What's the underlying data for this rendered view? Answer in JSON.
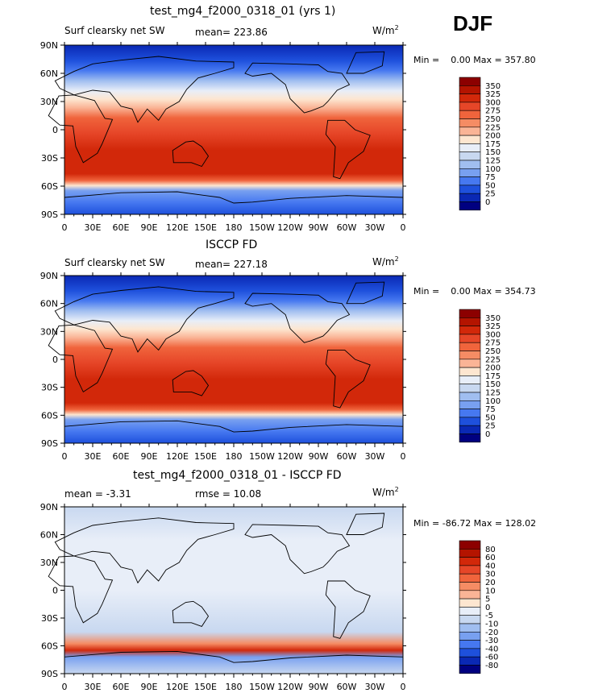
{
  "season": "DJF",
  "chart_data": [
    {
      "type": "heatmap",
      "title": "test_mg4_f2000_0318_01 (yrs 1)",
      "left_label": "Surf clearsky net SW",
      "center_label": "mean= 223.86",
      "units": "W/m",
      "units_exp": "2",
      "min_max": "Min =    0.00 Max = 357.80",
      "xticks": [
        "0",
        "30E",
        "60E",
        "90E",
        "120E",
        "150E",
        "180",
        "150W",
        "120W",
        "90W",
        "60W",
        "30W",
        "0"
      ],
      "yticks": [
        "90N",
        "60N",
        "30N",
        "0",
        "30S",
        "60S",
        "90S"
      ],
      "levels": [
        350,
        325,
        300,
        275,
        250,
        225,
        200,
        175,
        150,
        125,
        100,
        75,
        50,
        25,
        0
      ],
      "colors": [
        "#8c0000",
        "#b41400",
        "#d2280a",
        "#e64628",
        "#f0643c",
        "#f58c64",
        "#fab496",
        "#fde6d0",
        "#e8eef8",
        "#c8d8f0",
        "#a0bef0",
        "#78a0f0",
        "#4678f0",
        "#1e50dc",
        "#0a28b4",
        "#000080"
      ]
    },
    {
      "type": "heatmap",
      "title": "ISCCP FD",
      "left_label": "Surf clearsky net SW",
      "center_label": "mean= 227.18",
      "units": "W/m",
      "units_exp": "2",
      "min_max": "Min =    0.00 Max = 354.73",
      "xticks": [
        "0",
        "30E",
        "60E",
        "90E",
        "120E",
        "150E",
        "180",
        "150W",
        "120W",
        "90W",
        "60W",
        "30W",
        "0"
      ],
      "yticks": [
        "90N",
        "60N",
        "30N",
        "0",
        "30S",
        "60S",
        "90S"
      ],
      "levels": [
        350,
        325,
        300,
        275,
        250,
        225,
        200,
        175,
        150,
        125,
        100,
        75,
        50,
        25,
        0
      ],
      "colors": [
        "#8c0000",
        "#b41400",
        "#d2280a",
        "#e64628",
        "#f0643c",
        "#f58c64",
        "#fab496",
        "#fde6d0",
        "#e8eef8",
        "#c8d8f0",
        "#a0bef0",
        "#78a0f0",
        "#4678f0",
        "#1e50dc",
        "#0a28b4",
        "#000080"
      ]
    },
    {
      "type": "heatmap",
      "title": "test_mg4_f2000_0318_01 - ISCCP FD",
      "left_label": "mean =   -3.31",
      "center_label": "rmse =   10.08",
      "units": "W/m",
      "units_exp": "2",
      "min_max": "Min = -86.72 Max = 128.02",
      "xticks": [
        "0",
        "30E",
        "60E",
        "90E",
        "120E",
        "150E",
        "180",
        "150W",
        "120W",
        "90W",
        "60W",
        "30W",
        "0"
      ],
      "yticks": [
        "90N",
        "60N",
        "30N",
        "0",
        "30S",
        "60S",
        "90S"
      ],
      "levels": [
        80,
        60,
        40,
        30,
        20,
        10,
        5,
        0,
        -5,
        -10,
        -20,
        -30,
        -40,
        -60,
        -80
      ],
      "colors": [
        "#8c0000",
        "#b41400",
        "#d2280a",
        "#e64628",
        "#f0643c",
        "#f58c64",
        "#fab496",
        "#fde6d0",
        "#e8eef8",
        "#c8d8f0",
        "#a0bef0",
        "#78a0f0",
        "#4678f0",
        "#1e50dc",
        "#0a28b4",
        "#000080"
      ]
    }
  ]
}
